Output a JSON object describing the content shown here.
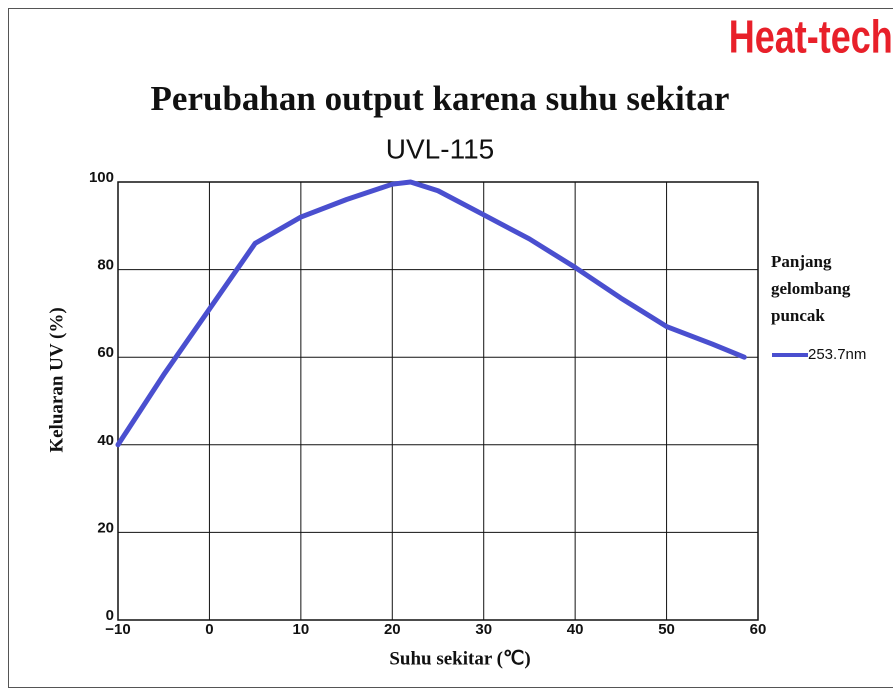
{
  "brand": "Heat-tech",
  "chart_data": {
    "type": "line",
    "title": "Perubahan output karena suhu sekitar",
    "subtitle": "UVL-115",
    "xlabel": "Suhu sekitar (℃)",
    "ylabel": "Keluaran UV (%)",
    "legend_title": "Panjang gelombang puncak",
    "x": [
      -10,
      -5,
      0,
      5,
      10,
      15,
      20,
      22,
      25,
      30,
      35,
      40,
      45,
      50,
      55,
      58.5
    ],
    "series": [
      {
        "name": "253.7nm",
        "color": "#4a4fcf",
        "values": [
          40,
          56,
          71,
          86,
          92,
          96,
          99.5,
          100,
          98,
          92.5,
          87,
          80.5,
          73.5,
          67,
          63,
          60
        ]
      }
    ],
    "xlim": [
      -10,
      60
    ],
    "xticks": [
      {
        "value": -10,
        "label": "−10"
      },
      0,
      10,
      20,
      30,
      40,
      50,
      60
    ],
    "ylim": [
      0,
      100
    ],
    "yticks": [
      0,
      20,
      40,
      60,
      80,
      100
    ],
    "grid": true
  }
}
